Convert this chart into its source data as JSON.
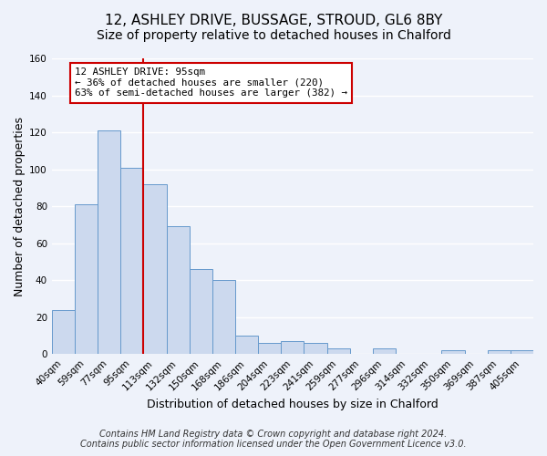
{
  "title": "12, ASHLEY DRIVE, BUSSAGE, STROUD, GL6 8BY",
  "subtitle": "Size of property relative to detached houses in Chalford",
  "xlabel": "Distribution of detached houses by size in Chalford",
  "ylabel": "Number of detached properties",
  "bar_labels": [
    "40sqm",
    "59sqm",
    "77sqm",
    "95sqm",
    "113sqm",
    "132sqm",
    "150sqm",
    "168sqm",
    "186sqm",
    "204sqm",
    "223sqm",
    "241sqm",
    "259sqm",
    "277sqm",
    "296sqm",
    "314sqm",
    "332sqm",
    "350sqm",
    "369sqm",
    "387sqm",
    "405sqm"
  ],
  "bar_heights": [
    24,
    81,
    121,
    101,
    92,
    69,
    46,
    40,
    10,
    6,
    7,
    6,
    3,
    0,
    3,
    0,
    0,
    2,
    0,
    2,
    2
  ],
  "bar_color": "#ccd9ee",
  "bar_edge_color": "#6699cc",
  "vline_x_index": 3,
  "vline_color": "#cc0000",
  "ylim": [
    0,
    160
  ],
  "yticks": [
    0,
    20,
    40,
    60,
    80,
    100,
    120,
    140,
    160
  ],
  "annotation_title": "12 ASHLEY DRIVE: 95sqm",
  "annotation_line1": "← 36% of detached houses are smaller (220)",
  "annotation_line2": "63% of semi-detached houses are larger (382) →",
  "annotation_box_color": "#ffffff",
  "annotation_box_edge": "#cc0000",
  "footer_line1": "Contains HM Land Registry data © Crown copyright and database right 2024.",
  "footer_line2": "Contains public sector information licensed under the Open Government Licence v3.0.",
  "background_color": "#eef2fa",
  "grid_color": "#ffffff",
  "title_fontsize": 11,
  "axis_label_fontsize": 9,
  "tick_fontsize": 7.5,
  "footer_fontsize": 7
}
